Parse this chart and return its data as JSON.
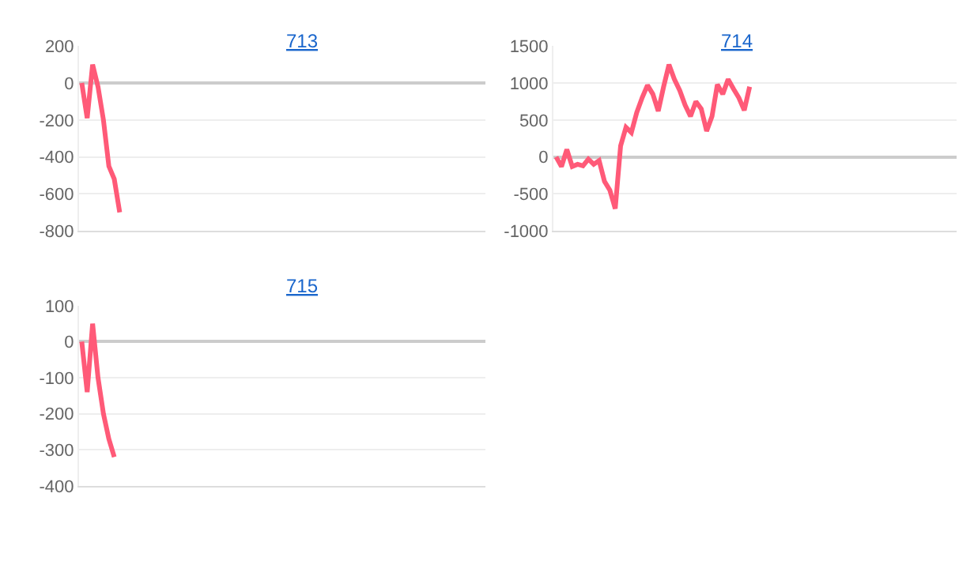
{
  "chart_data": [
    {
      "type": "line",
      "title": "713",
      "categories": [
        null,
        null,
        null,
        null,
        null,
        null,
        null,
        null,
        null,
        null,
        null,
        null,
        null,
        null,
        null,
        null,
        null,
        null,
        null,
        null,
        null,
        null,
        null,
        null,
        null,
        null,
        null,
        null,
        null,
        null,
        null,
        null,
        null,
        null,
        null,
        null,
        null,
        null,
        null,
        null,
        null,
        null,
        null,
        null,
        null,
        null,
        null,
        null,
        null,
        null,
        null,
        null,
        null,
        null,
        null,
        null,
        null,
        null,
        null,
        null,
        null,
        null,
        null,
        null,
        null,
        null,
        null,
        null,
        null,
        null,
        null,
        null,
        null,
        null,
        null
      ],
      "series": [
        {
          "color": "#ff5a78",
          "values": [
            0,
            -190,
            100,
            -20,
            -200,
            -450,
            -520,
            -700,
            null,
            null,
            null,
            null,
            null,
            null,
            null,
            null,
            null,
            null,
            null,
            null,
            null,
            null,
            null,
            null,
            null,
            null,
            null,
            null,
            null,
            null,
            null,
            null,
            null,
            null,
            null,
            null,
            null,
            null,
            null,
            null,
            null,
            null,
            null,
            null,
            null,
            null,
            null,
            null,
            null,
            null,
            null,
            null,
            null,
            null,
            null,
            null,
            null,
            null,
            null,
            null,
            null,
            null,
            null,
            null,
            null,
            null,
            null,
            null,
            null,
            null,
            null,
            null,
            null,
            null,
            null
          ]
        }
      ],
      "ylim": [
        -800,
        200
      ],
      "yticks": [
        -800,
        -600,
        -400,
        -200,
        0,
        200
      ],
      "grid": "y",
      "tick_labels": "y",
      "marker": "none",
      "line_style": "solid"
    },
    {
      "type": "line",
      "title": "714",
      "categories": [
        null,
        null,
        null,
        null,
        null,
        null,
        null,
        null,
        null,
        null,
        null,
        null,
        null,
        null,
        null,
        null,
        null,
        null,
        null,
        null,
        null,
        null,
        null,
        null,
        null,
        null,
        null,
        null,
        null,
        null,
        null,
        null,
        null,
        null,
        null,
        null,
        null,
        null,
        null,
        null,
        null,
        null,
        null,
        null,
        null,
        null,
        null,
        null,
        null,
        null,
        null,
        null,
        null,
        null,
        null,
        null,
        null,
        null,
        null,
        null,
        null,
        null,
        null,
        null,
        null,
        null,
        null,
        null,
        null,
        null,
        null,
        null,
        null,
        null,
        null
      ],
      "series": [
        {
          "color": "#ff5a78",
          "values": [
            0,
            -130,
            100,
            -130,
            -100,
            -120,
            -30,
            -100,
            -50,
            -330,
            -450,
            -700,
            150,
            400,
            330,
            600,
            800,
            970,
            850,
            620,
            950,
            1250,
            1050,
            900,
            700,
            550,
            750,
            650,
            350,
            550,
            980,
            850,
            1050,
            920,
            800,
            630,
            950,
            null,
            null,
            null,
            null,
            null,
            null,
            null,
            null,
            null,
            null,
            null,
            null,
            null,
            null,
            null,
            null,
            null,
            null,
            null,
            null,
            null,
            null,
            null,
            null,
            null,
            null,
            null,
            null,
            null,
            null,
            null,
            null,
            null,
            null,
            null,
            null,
            null,
            null
          ]
        }
      ],
      "ylim": [
        -1000,
        1500
      ],
      "yticks": [
        -1000,
        -500,
        0,
        500,
        1000,
        1500
      ],
      "grid": "y",
      "tick_labels": "y",
      "marker": "none",
      "line_style": "solid"
    },
    {
      "type": "line",
      "title": "715",
      "categories": [
        null,
        null,
        null,
        null,
        null,
        null,
        null,
        null,
        null,
        null,
        null,
        null,
        null,
        null,
        null,
        null,
        null,
        null,
        null,
        null,
        null,
        null,
        null,
        null,
        null,
        null,
        null,
        null,
        null,
        null,
        null,
        null,
        null,
        null,
        null,
        null,
        null,
        null,
        null,
        null,
        null,
        null,
        null,
        null,
        null,
        null,
        null,
        null,
        null,
        null,
        null,
        null,
        null,
        null,
        null,
        null,
        null,
        null,
        null,
        null,
        null,
        null,
        null,
        null,
        null,
        null,
        null,
        null,
        null,
        null,
        null,
        null,
        null,
        null,
        null
      ],
      "series": [
        {
          "color": "#ff5a78",
          "values": [
            0,
            -140,
            50,
            -100,
            -200,
            -270,
            -320,
            null,
            null,
            null,
            null,
            null,
            null,
            null,
            null,
            null,
            null,
            null,
            null,
            null,
            null,
            null,
            null,
            null,
            null,
            null,
            null,
            null,
            null,
            null,
            null,
            null,
            null,
            null,
            null,
            null,
            null,
            null,
            null,
            null,
            null,
            null,
            null,
            null,
            null,
            null,
            null,
            null,
            null,
            null,
            null,
            null,
            null,
            null,
            null,
            null,
            null,
            null,
            null,
            null,
            null,
            null,
            null,
            null,
            null,
            null,
            null,
            null,
            null,
            null,
            null,
            null,
            null,
            null,
            null
          ]
        }
      ],
      "ylim": [
        -400,
        100
      ],
      "yticks": [
        -400,
        -300,
        -200,
        -100,
        0,
        100
      ],
      "grid": "y",
      "tick_labels": "y",
      "marker": "none",
      "line_style": "solid"
    }
  ]
}
